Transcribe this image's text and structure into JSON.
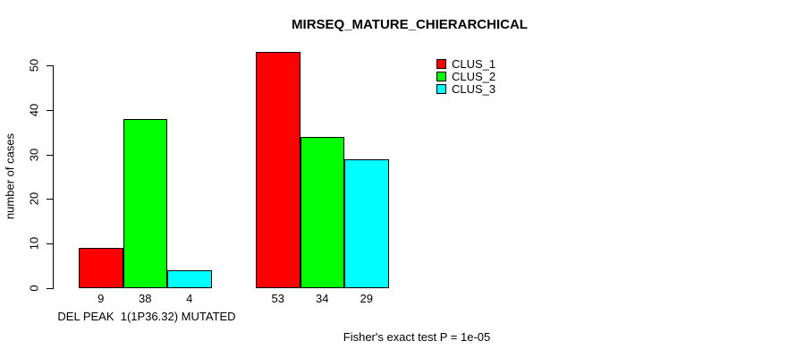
{
  "chart_data": {
    "type": "bar",
    "title": "MIRSEQ_MATURE_CHIERARCHICAL",
    "ylabel": "number of cases",
    "xlabel": "DEL PEAK  1(1P36.32) MUTATED",
    "annotation": "Fisher's exact test P = 1e-05",
    "categories": [
      "DEL PEAK  1(1P36.32) MUTATED",
      ""
    ],
    "series": [
      {
        "name": "CLUS_1",
        "color": "#FF0000",
        "values": [
          9,
          53
        ]
      },
      {
        "name": "CLUS_2",
        "color": "#00FF00",
        "values": [
          38,
          34
        ]
      },
      {
        "name": "CLUS_3",
        "color": "#00FFFF",
        "values": [
          4,
          29
        ]
      }
    ],
    "bar_value_labels": [
      [
        9,
        38,
        4
      ],
      [
        53,
        34,
        29
      ]
    ],
    "yticks": [
      0,
      10,
      20,
      30,
      40,
      50
    ],
    "ylim": [
      0,
      53
    ],
    "grid": false,
    "legend_position": "top-right",
    "legend_box": false
  }
}
